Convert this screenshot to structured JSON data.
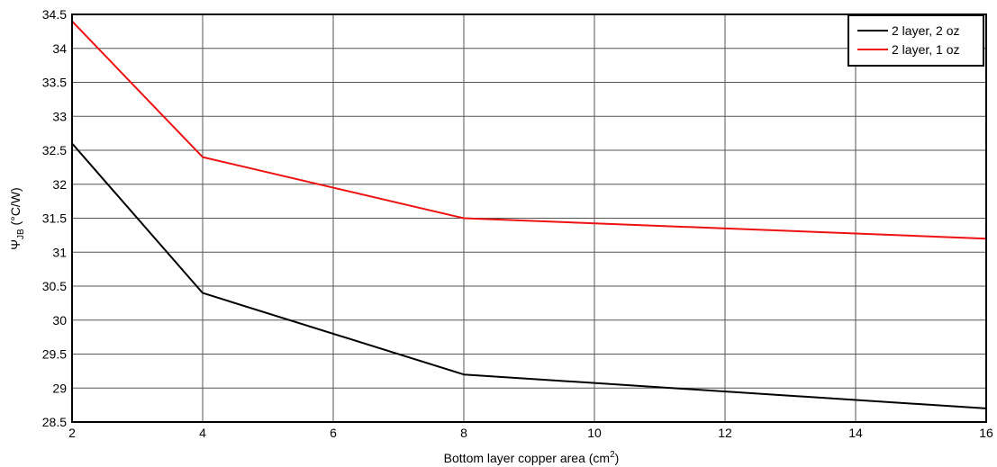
{
  "chart_data": {
    "type": "line",
    "xlabel_main": "Bottom layer copper area (cm",
    "xlabel_sup": "2",
    "xlabel_end": ")",
    "ylabel_main": "Ψ",
    "ylabel_sub": "JB",
    "ylabel_end": " (°C/W)",
    "xlim": [
      2,
      16
    ],
    "ylim": [
      28.5,
      34.5
    ],
    "x_ticks": [
      "2",
      "4",
      "6",
      "8",
      "10",
      "12",
      "14",
      "16"
    ],
    "y_ticks": [
      "34.5",
      "34",
      "33.5",
      "33",
      "32.5",
      "32",
      "31.5",
      "31",
      "30.5",
      "30",
      "29.5",
      "29",
      "28.5"
    ],
    "grid": true,
    "legend_position": "top-right",
    "series": [
      {
        "name": "2 layer, 2 oz",
        "color": "#000000",
        "x": [
          2,
          4,
          8,
          16
        ],
        "y": [
          32.6,
          30.4,
          29.2,
          28.7
        ]
      },
      {
        "name": "2 layer, 1 oz",
        "color": "#ee1111",
        "x": [
          2,
          4,
          8,
          16
        ],
        "y": [
          34.4,
          32.4,
          31.5,
          31.2
        ]
      }
    ]
  }
}
